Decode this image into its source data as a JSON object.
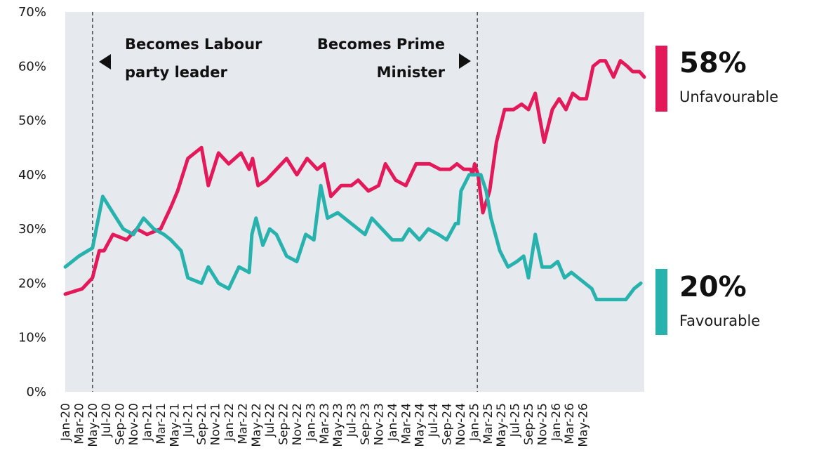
{
  "chart_data": {
    "type": "line",
    "title": "",
    "xlabel": "",
    "ylabel": "",
    "ylim": [
      0,
      70
    ],
    "yticks": [
      "0%",
      "10%",
      "20%",
      "30%",
      "40%",
      "50%",
      "60%",
      "70%"
    ],
    "grid": false,
    "x_tick_labels": [
      "Jan-20",
      "Mar-20",
      "May-20",
      "Jul-20",
      "Sep-20",
      "Nov-20",
      "Jan-21",
      "Mar-21",
      "May-21",
      "Jul-21",
      "Sep-21",
      "Nov-21",
      "Jan-22",
      "Mar-22",
      "May-22",
      "Jul-22",
      "Sep-22",
      "Nov-22",
      "Jan-23",
      "Mar-23",
      "May-23",
      "Jul-23",
      "Sep-23",
      "Nov-23",
      "Jan-24",
      "Mar-24",
      "May-24",
      "Jul-24",
      "Sep-24",
      "Nov-24",
      "Jan-25",
      "Mar-25",
      "May-25",
      "Jul-25",
      "Sep-25",
      "Nov-25",
      "Jan-26",
      "Mar-26",
      "May-26"
    ],
    "x_range": [
      "Jan-20",
      "Jun-26"
    ],
    "colors": {
      "unfavourable": "#e3195a",
      "favourable": "#27b2ad",
      "plot_bg": "#e6e9ee",
      "marker_line": "#555555"
    },
    "series": [
      {
        "name": "Unfavourable",
        "color": "#e3195a",
        "points": [
          [
            0,
            18
          ],
          [
            2.5,
            19
          ],
          [
            4,
            21
          ],
          [
            5,
            26
          ],
          [
            5.7,
            26
          ],
          [
            7,
            29
          ],
          [
            9,
            28
          ],
          [
            10.5,
            30
          ],
          [
            12,
            29
          ],
          [
            14,
            30
          ],
          [
            15.5,
            34
          ],
          [
            16.5,
            37
          ],
          [
            18,
            43
          ],
          [
            20,
            45
          ],
          [
            21,
            38
          ],
          [
            22.5,
            44
          ],
          [
            24,
            42
          ],
          [
            25.8,
            44
          ],
          [
            27,
            41
          ],
          [
            27.5,
            43
          ],
          [
            28.3,
            38
          ],
          [
            29.5,
            39
          ],
          [
            31,
            41
          ],
          [
            32.5,
            43
          ],
          [
            34,
            40
          ],
          [
            35.5,
            43
          ],
          [
            37,
            41
          ],
          [
            38,
            42
          ],
          [
            39,
            36
          ],
          [
            40.5,
            38
          ],
          [
            42,
            38
          ],
          [
            43,
            39
          ],
          [
            44.5,
            37
          ],
          [
            46,
            38
          ],
          [
            47,
            42
          ],
          [
            48.5,
            39
          ],
          [
            50,
            38
          ],
          [
            51.5,
            42
          ],
          [
            53.5,
            42
          ],
          [
            55,
            41
          ],
          [
            56.5,
            41
          ],
          [
            57.5,
            42
          ],
          [
            58.5,
            41
          ],
          [
            59.5,
            41
          ],
          [
            59.8,
            40
          ],
          [
            60.1,
            42
          ],
          [
            60.6,
            40
          ],
          [
            61.3,
            33
          ],
          [
            62.3,
            37
          ],
          [
            63.3,
            46
          ],
          [
            64.5,
            52
          ],
          [
            65.8,
            52
          ],
          [
            67,
            53
          ],
          [
            68,
            52
          ],
          [
            69,
            55
          ],
          [
            70.3,
            46
          ],
          [
            71.5,
            52
          ],
          [
            72.5,
            54
          ],
          [
            73.5,
            52
          ],
          [
            74.5,
            55
          ],
          [
            75.5,
            54
          ],
          [
            76.5,
            54
          ],
          [
            77.5,
            60
          ],
          [
            78.5,
            61
          ],
          [
            79.3,
            61
          ],
          [
            80.5,
            58
          ],
          [
            81.5,
            61
          ],
          [
            82.5,
            60
          ],
          [
            83.3,
            59
          ],
          [
            84.3,
            59
          ],
          [
            85,
            58
          ]
        ]
      },
      {
        "name": "Favourable",
        "color": "#27b2ad",
        "points": [
          [
            0,
            23
          ],
          [
            2,
            25
          ],
          [
            4,
            26.5
          ],
          [
            5.5,
            36
          ],
          [
            7,
            33
          ],
          [
            8.5,
            30
          ],
          [
            10,
            29
          ],
          [
            11.5,
            32
          ],
          [
            13,
            30
          ],
          [
            14.5,
            29
          ],
          [
            15.5,
            28
          ],
          [
            17,
            26
          ],
          [
            18,
            21
          ],
          [
            20,
            20
          ],
          [
            21,
            23
          ],
          [
            22.5,
            20
          ],
          [
            24,
            19
          ],
          [
            25.5,
            23
          ],
          [
            27,
            22
          ],
          [
            27.4,
            29
          ],
          [
            28,
            32
          ],
          [
            29,
            27
          ],
          [
            30,
            30
          ],
          [
            31,
            29
          ],
          [
            32.5,
            25
          ],
          [
            34,
            24
          ],
          [
            35.3,
            29
          ],
          [
            36.5,
            28
          ],
          [
            37.5,
            38
          ],
          [
            38.5,
            32
          ],
          [
            40,
            33
          ],
          [
            42,
            31
          ],
          [
            44,
            29
          ],
          [
            45,
            32
          ],
          [
            46.5,
            30
          ],
          [
            48,
            28
          ],
          [
            49.5,
            28
          ],
          [
            50.5,
            30
          ],
          [
            52,
            28
          ],
          [
            53.3,
            30
          ],
          [
            54.8,
            29
          ],
          [
            56,
            28
          ],
          [
            57.3,
            31
          ],
          [
            57.7,
            31
          ],
          [
            58.1,
            37
          ],
          [
            59.3,
            40
          ],
          [
            61,
            40
          ],
          [
            61.8,
            37
          ],
          [
            62.5,
            32
          ],
          [
            63.8,
            26
          ],
          [
            65,
            23
          ],
          [
            66.3,
            24
          ],
          [
            67.3,
            25
          ],
          [
            68,
            21
          ],
          [
            69,
            29
          ],
          [
            70,
            23
          ],
          [
            71.3,
            23
          ],
          [
            72.3,
            24
          ],
          [
            73.3,
            21
          ],
          [
            74.3,
            22
          ],
          [
            75.3,
            21
          ],
          [
            76.3,
            20
          ],
          [
            77.3,
            19
          ],
          [
            78,
            17
          ],
          [
            79,
            17
          ],
          [
            80.3,
            17
          ],
          [
            82.3,
            17
          ],
          [
            83.5,
            19
          ],
          [
            84.5,
            20
          ]
        ]
      }
    ],
    "annotations": [
      {
        "x": 4,
        "lines": [
          "Becomes Labour",
          "party leader"
        ],
        "arrow": "left"
      },
      {
        "x": 60.5,
        "lines": [
          "Becomes Prime",
          "Minister"
        ],
        "arrow": "right"
      }
    ],
    "end_labels": [
      {
        "series": "Unfavourable",
        "value": "58%",
        "label": "Unfavourable",
        "color": "#e3195a"
      },
      {
        "series": "Favourable",
        "value": "20%",
        "label": "Favourable",
        "color": "#27b2ad"
      }
    ]
  }
}
